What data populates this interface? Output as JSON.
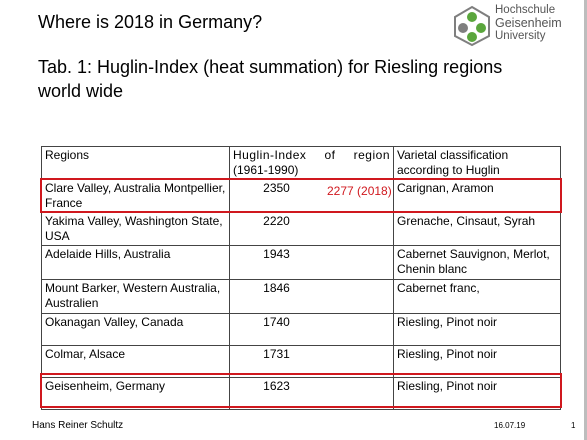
{
  "slide": {
    "title": "Where is 2018 in Germany?",
    "subtitle": "Tab. 1: Huglin-Index (heat summation) for Riesling regions world wide",
    "logo": {
      "line1": "Hochschule",
      "line2": "Geisenheim",
      "line3": "University"
    },
    "table": {
      "headers": {
        "regions": "Regions",
        "huglin_a": "Huglin-Index",
        "huglin_b": "of",
        "huglin_c": "region",
        "huglin_d": "(1961-1990)",
        "varietal": "Varietal classification according to Huglin"
      },
      "rows": [
        {
          "region": "Clare Valley, Australia Montpellier, France",
          "index": "2350",
          "varietal": "Carignan, Aramon"
        },
        {
          "region": "Yakima Valley, Washington State, USA",
          "index": "2220",
          "varietal": "Grenache, Cinsaut, Syrah"
        },
        {
          "region": "Adelaide Hills, Australia",
          "index": "1943",
          "varietal": "Cabernet Sauvignon, Merlot, Chenin blanc"
        },
        {
          "region": "Mount Barker, Western Australia, Australien",
          "index": "1846",
          "varietal": "Cabernet franc,"
        },
        {
          "region": "Okanagan Valley, Canada",
          "index": "1740",
          "varietal": "Riesling, Pinot noir"
        },
        {
          "region": "Colmar, Alsace",
          "index": "1731",
          "varietal": "Riesling, Pinot noir"
        },
        {
          "region": "Geisenheim, Germany",
          "index": "1623",
          "varietal": "Riesling, Pinot noir"
        }
      ],
      "annotation_2018": "2277 (2018)"
    },
    "footer": {
      "author": "Hans Reiner Schultz",
      "date": "16.07.19",
      "page": "1"
    }
  },
  "colors": {
    "highlight": "#d0181e",
    "logo_green": "#5aa63c",
    "logo_grey": "#7f7f7f"
  }
}
